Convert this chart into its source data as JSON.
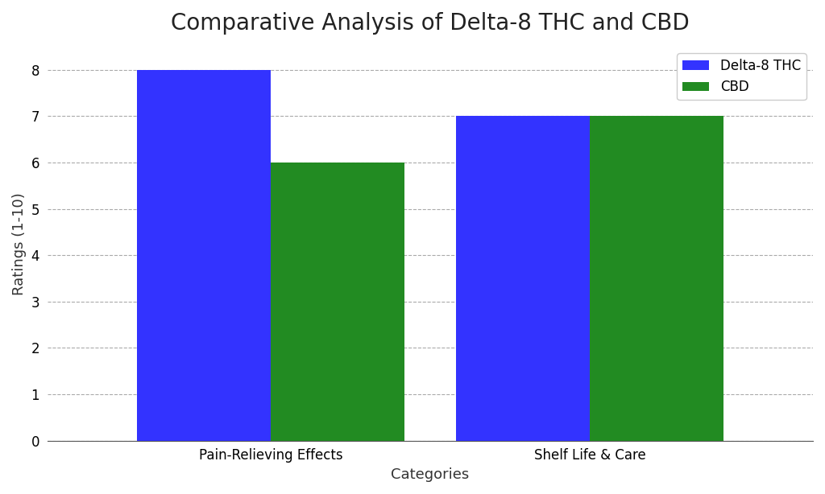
{
  "title": "Comparative Analysis of Delta-8 THC and CBD",
  "xlabel": "Categories",
  "ylabel": "Ratings (1-10)",
  "categories": [
    "Pain-Relieving Effects",
    "Shelf Life & Care"
  ],
  "series": [
    {
      "label": "Delta-8 THC",
      "values": [
        8,
        7
      ],
      "color": "#3333ff"
    },
    {
      "label": "CBD",
      "values": [
        6,
        7
      ],
      "color": "#228B22"
    }
  ],
  "ylim": [
    0,
    8.5
  ],
  "yticks": [
    0,
    1,
    2,
    3,
    4,
    5,
    6,
    7,
    8
  ],
  "bar_width": 0.42,
  "background_color": "#ffffff",
  "grid_color": "#aaaaaa",
  "grid_linestyle": "--",
  "title_fontsize": 20,
  "label_fontsize": 13,
  "tick_fontsize": 12,
  "legend_fontsize": 12
}
